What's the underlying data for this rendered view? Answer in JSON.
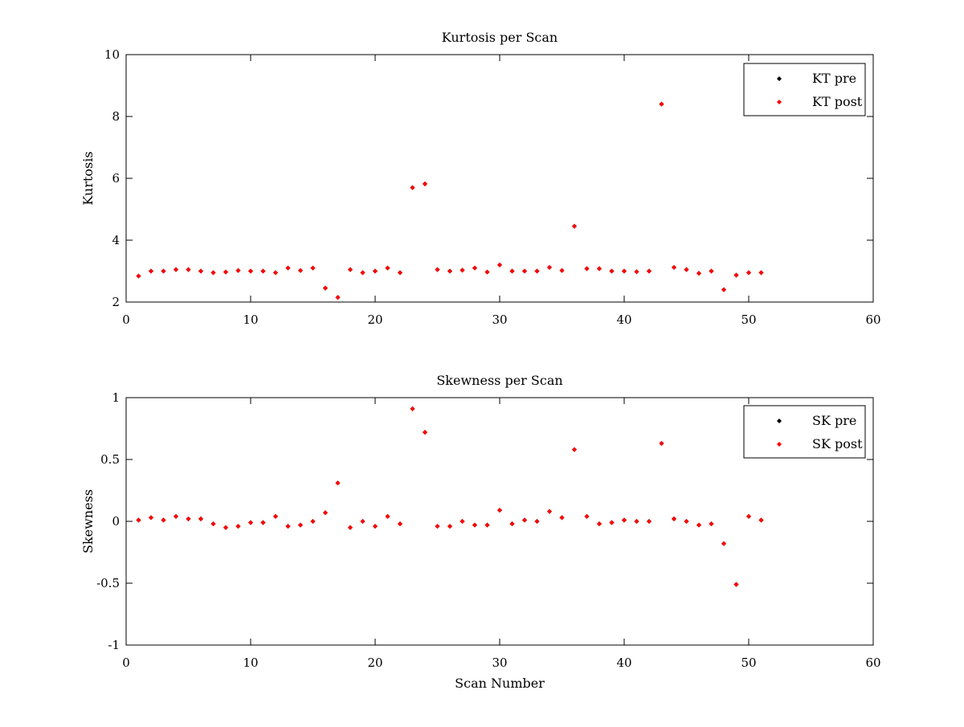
{
  "chart_data": [
    {
      "type": "scatter",
      "title": "Kurtosis per Scan",
      "xlabel": "",
      "ylabel": "Kurtosis",
      "xlim": [
        0,
        60
      ],
      "ylim": [
        2,
        10
      ],
      "xticks": [
        0,
        10,
        20,
        30,
        40,
        50,
        60
      ],
      "yticks": [
        2,
        4,
        6,
        8,
        10
      ],
      "grid": false,
      "legend_position": "top-right",
      "series": [
        {
          "name": "KT pre",
          "color": "#000000",
          "x": [
            1,
            2,
            3,
            4,
            5,
            6,
            7,
            8,
            9,
            10,
            11,
            12,
            13,
            14,
            15,
            16,
            17,
            18,
            19,
            20,
            21,
            22,
            23,
            24,
            25,
            26,
            27,
            28,
            29,
            30,
            31,
            32,
            33,
            34,
            35,
            36,
            37,
            38,
            39,
            40,
            41,
            42,
            43,
            44,
            45,
            46,
            47,
            48,
            49,
            50,
            51
          ],
          "y": [
            2.84,
            3.0,
            3.0,
            3.05,
            3.05,
            3.0,
            2.95,
            2.97,
            3.02,
            3.0,
            3.0,
            2.95,
            3.1,
            3.02,
            3.1,
            2.45,
            2.15,
            3.05,
            2.95,
            3.0,
            3.1,
            2.95,
            5.7,
            5.82,
            3.05,
            3.0,
            3.03,
            3.1,
            2.97,
            3.2,
            3.0,
            3.0,
            3.0,
            3.12,
            3.02,
            4.45,
            3.08,
            3.08,
            3.0,
            3.0,
            2.98,
            3.0,
            8.4,
            3.12,
            3.05,
            2.93,
            3.0,
            2.4,
            2.87,
            2.95,
            2.95
          ]
        },
        {
          "name": "KT post",
          "color": "#ff0000",
          "x": [
            1,
            2,
            3,
            4,
            5,
            6,
            7,
            8,
            9,
            10,
            11,
            12,
            13,
            14,
            15,
            16,
            17,
            18,
            19,
            20,
            21,
            22,
            23,
            24,
            25,
            26,
            27,
            28,
            29,
            30,
            31,
            32,
            33,
            34,
            35,
            36,
            37,
            38,
            39,
            40,
            41,
            42,
            43,
            44,
            45,
            46,
            47,
            48,
            49,
            50,
            51
          ],
          "y": [
            2.84,
            3.0,
            3.0,
            3.05,
            3.05,
            3.0,
            2.95,
            2.97,
            3.02,
            3.0,
            3.0,
            2.95,
            3.1,
            3.02,
            3.1,
            2.45,
            2.15,
            3.05,
            2.95,
            3.0,
            3.1,
            2.95,
            5.7,
            5.82,
            3.05,
            3.0,
            3.03,
            3.1,
            2.97,
            3.2,
            3.0,
            3.0,
            3.0,
            3.12,
            3.02,
            4.45,
            3.08,
            3.08,
            3.0,
            3.0,
            2.98,
            3.0,
            8.4,
            3.12,
            3.05,
            2.93,
            3.0,
            2.4,
            2.87,
            2.95,
            2.95
          ]
        }
      ]
    },
    {
      "type": "scatter",
      "title": "Skewness per Scan",
      "xlabel": "Scan Number",
      "ylabel": "Skewness",
      "xlim": [
        0,
        60
      ],
      "ylim": [
        -1,
        1
      ],
      "xticks": [
        0,
        10,
        20,
        30,
        40,
        50,
        60
      ],
      "yticks": [
        -1,
        -0.5,
        0,
        0.5,
        1
      ],
      "grid": false,
      "legend_position": "top-right",
      "series": [
        {
          "name": "SK pre",
          "color": "#000000",
          "x": [
            1,
            2,
            3,
            4,
            5,
            6,
            7,
            8,
            9,
            10,
            11,
            12,
            13,
            14,
            15,
            16,
            17,
            18,
            19,
            20,
            21,
            22,
            23,
            24,
            25,
            26,
            27,
            28,
            29,
            30,
            31,
            32,
            33,
            34,
            35,
            36,
            37,
            38,
            39,
            40,
            41,
            42,
            43,
            44,
            45,
            46,
            47,
            48,
            49,
            50,
            51
          ],
          "y": [
            0.01,
            0.03,
            0.01,
            0.04,
            0.02,
            0.02,
            -0.02,
            -0.05,
            -0.04,
            -0.01,
            -0.01,
            0.04,
            -0.04,
            -0.03,
            0.0,
            0.07,
            0.31,
            -0.05,
            0.0,
            -0.04,
            0.04,
            -0.02,
            0.91,
            0.72,
            -0.04,
            -0.04,
            0.0,
            -0.03,
            -0.03,
            0.09,
            -0.02,
            0.01,
            0.0,
            0.08,
            0.03,
            0.58,
            0.04,
            -0.02,
            -0.01,
            0.01,
            0.0,
            0.0,
            0.63,
            0.02,
            0.0,
            -0.03,
            -0.02,
            -0.18,
            -0.51,
            0.04,
            0.01
          ]
        },
        {
          "name": "SK post",
          "color": "#ff0000",
          "x": [
            1,
            2,
            3,
            4,
            5,
            6,
            7,
            8,
            9,
            10,
            11,
            12,
            13,
            14,
            15,
            16,
            17,
            18,
            19,
            20,
            21,
            22,
            23,
            24,
            25,
            26,
            27,
            28,
            29,
            30,
            31,
            32,
            33,
            34,
            35,
            36,
            37,
            38,
            39,
            40,
            41,
            42,
            43,
            44,
            45,
            46,
            47,
            48,
            49,
            50,
            51
          ],
          "y": [
            0.01,
            0.03,
            0.01,
            0.04,
            0.02,
            0.02,
            -0.02,
            -0.05,
            -0.04,
            -0.01,
            -0.01,
            0.04,
            -0.04,
            -0.03,
            0.0,
            0.07,
            0.31,
            -0.05,
            0.0,
            -0.04,
            0.04,
            -0.02,
            0.91,
            0.72,
            -0.04,
            -0.04,
            0.0,
            -0.03,
            -0.03,
            0.09,
            -0.02,
            0.01,
            0.0,
            0.08,
            0.03,
            0.58,
            0.04,
            -0.02,
            -0.01,
            0.01,
            0.0,
            0.0,
            0.63,
            0.02,
            0.0,
            -0.03,
            -0.02,
            -0.18,
            -0.51,
            0.04,
            0.01
          ]
        }
      ]
    }
  ]
}
